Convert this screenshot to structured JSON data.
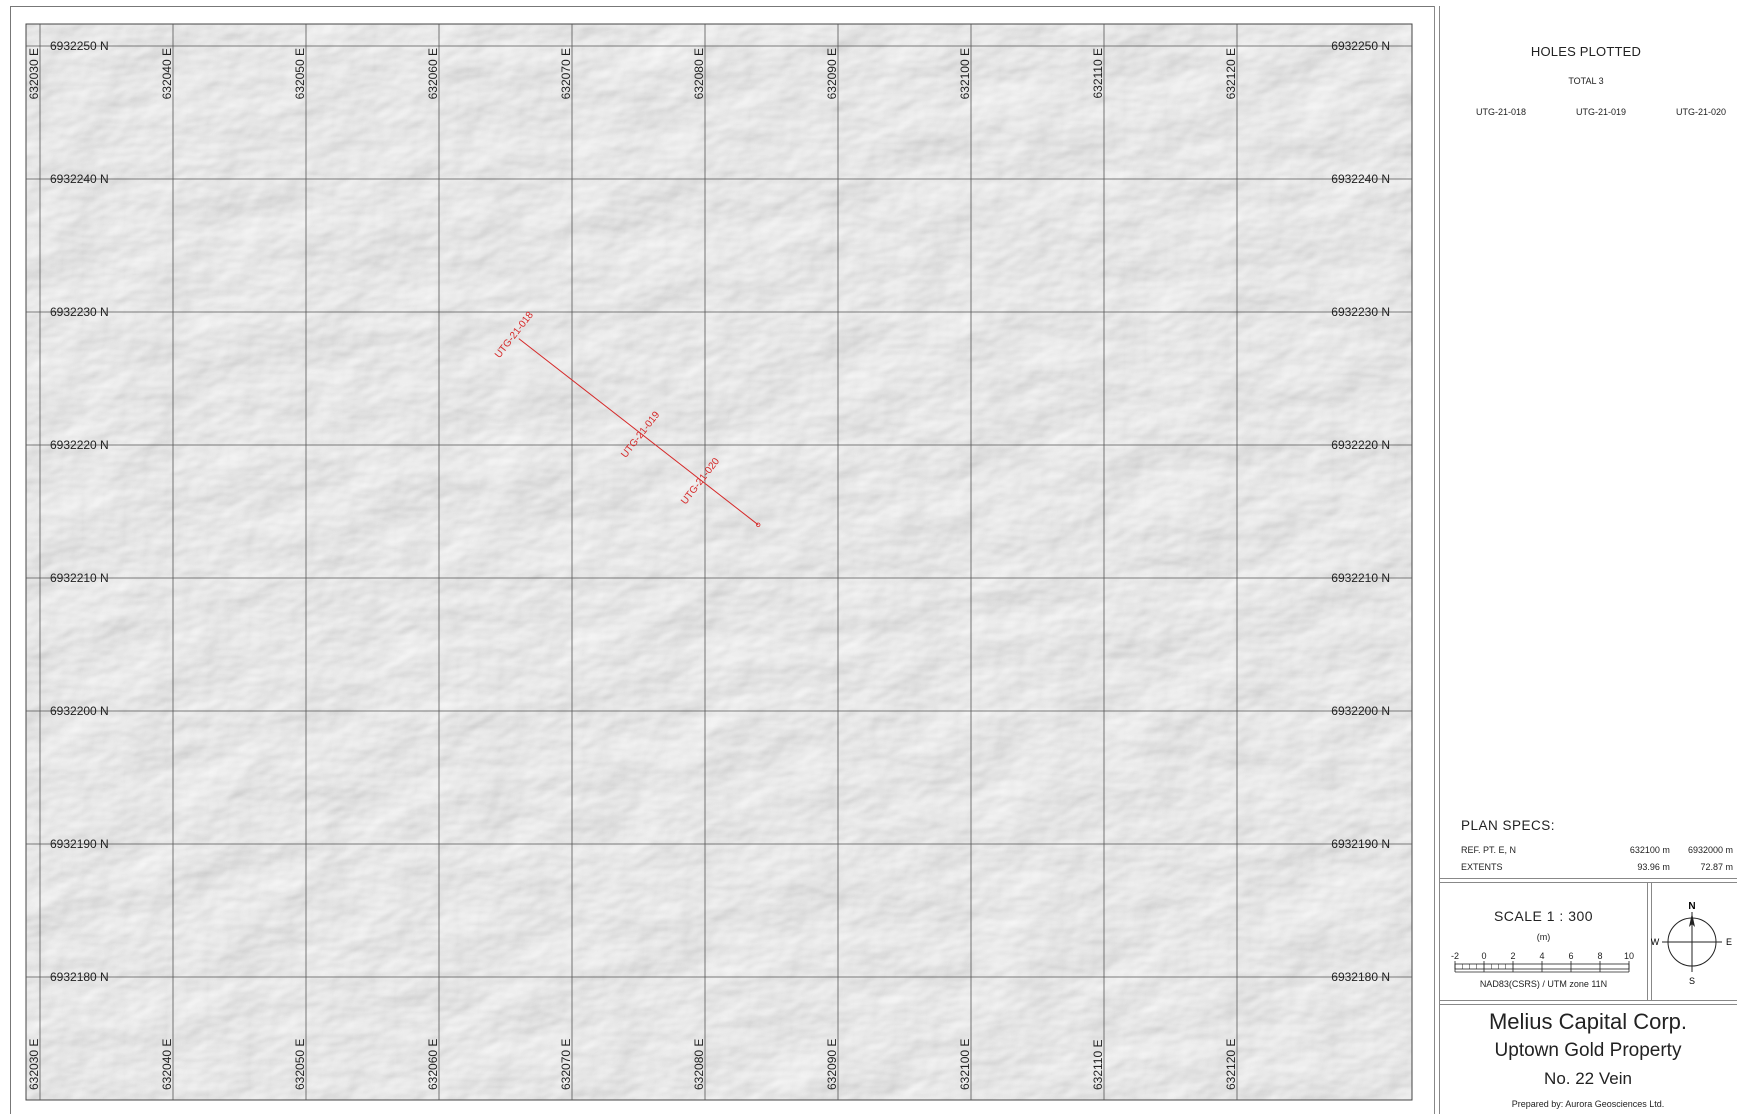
{
  "map": {
    "easting_labels": [
      "632030 E",
      "632040 E",
      "632050 E",
      "632060 E",
      "632070 E",
      "632080 E",
      "632090 E",
      "632100 E",
      "632110 E",
      "632120 E"
    ],
    "northing_labels": [
      "6932250 N",
      "6932240 N",
      "6932230 N",
      "6932220 N",
      "6932210 N",
      "6932200 N",
      "6932190 N",
      "6932180 N"
    ],
    "drill_trace": {
      "color": "#d62828",
      "start": {
        "e": 632066.0,
        "n": 6932228.0
      },
      "end": {
        "e": 632084.0,
        "n": 6932214.0
      }
    },
    "holes": [
      {
        "label": "UTG-21-018",
        "e": 632066.0,
        "n": 6932228.0
      },
      {
        "label": "UTG-21-019",
        "e": 632075.5,
        "n": 6932220.5
      },
      {
        "label": "UTG-21-020",
        "e": 632080.0,
        "n": 6932217.0
      }
    ]
  },
  "panel": {
    "holes_plotted_title": "HOLES PLOTTED",
    "total": "TOTAL 3",
    "holes_list": [
      "UTG-21-018",
      "UTG-21-019",
      "UTG-21-020"
    ],
    "plan_specs": {
      "title": "PLAN  SPECS:",
      "rows": [
        {
          "label": "REF. PT.  E, N",
          "v1": "632100 m",
          "v2": "6932000 m"
        },
        {
          "label": "EXTENTS",
          "v1": "93.96 m",
          "v2": "72.87 m"
        }
      ]
    },
    "scale": {
      "title": "SCALE  1 : 300",
      "unit": "(m)",
      "ticks": [
        "-2",
        "0",
        "2",
        "4",
        "6",
        "8",
        "10"
      ],
      "datum": "NAD83(CSRS) / UTM zone 11N"
    },
    "north_arrow": {
      "n": "N",
      "e": "E",
      "s": "S",
      "w": "W"
    },
    "company": "Melius Capital Corp.",
    "property": "Uptown Gold Property",
    "vein": "No. 22 Vein",
    "prepared_by": "Prepared by: Aurora Geosciences Ltd."
  }
}
